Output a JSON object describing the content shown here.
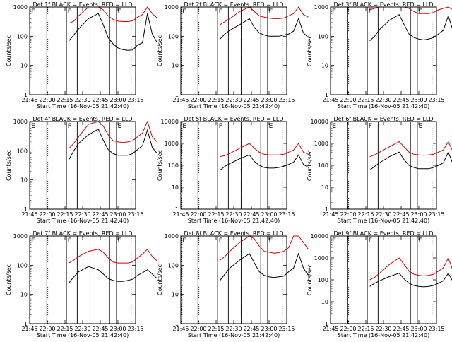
{
  "chart_data": {
    "type": "line",
    "xlabel": "Start Time (16-Nov-05 21:42:40)",
    "ylabel": "Counts/sec",
    "xticks": [
      "21:45",
      "22:00",
      "22:15",
      "22:30",
      "22:45",
      "23:00",
      "23:15"
    ],
    "yticks": [
      "1",
      "10",
      "100",
      "1000"
    ],
    "yticks_big": [
      "1",
      "10",
      "100",
      "1000",
      "10000"
    ],
    "x_minutes": [
      0,
      10,
      20,
      25,
      30,
      35,
      40,
      45,
      50,
      60,
      70,
      75,
      80,
      85,
      90,
      95,
      100,
      105,
      110,
      115,
      120,
      125,
      130
    ],
    "markers_dotted": [
      0.5,
      18.5,
      61.5,
      103.5
    ],
    "markers_solid": [
      17.5,
      37.5,
      48.5,
      61.5,
      81.5,
      88.5
    ],
    "marker_letters": [
      "E",
      "F",
      "E"
    ],
    "panels": [
      {
        "title": "Det 1f BLACK = Events, RED = LLD",
        "ymax_decade": 3,
        "series": [
          {
            "name": "Events",
            "color": "#000000",
            "values": [
              null,
              null,
              null,
              null,
              null,
              null,
              70,
              110,
              180,
              400,
              600,
              250,
              90,
              55,
              40,
              35,
              33,
              34,
              50,
              60,
              600,
              120,
              60
            ]
          },
          {
            "name": "LLD",
            "color": "#dd0000",
            "values": [
              null,
              null,
              null,
              null,
              null,
              null,
              280,
              330,
              500,
              1000,
              1000,
              800,
              500,
              380,
              330,
              320,
              320,
              340,
              450,
              550,
              1000,
              600,
              420
            ]
          }
        ]
      },
      {
        "title": "Det 2f BLACK = Events, RED = LLD",
        "ymax_decade": 3,
        "series": [
          {
            "name": "Events",
            "color": "#000000",
            "values": [
              null,
              null,
              null,
              null,
              null,
              null,
              80,
              120,
              160,
              250,
              400,
              200,
              130,
              110,
              100,
              100,
              100,
              110,
              120,
              150,
              400,
              130,
              90
            ]
          },
          {
            "name": "LLD",
            "color": "#dd0000",
            "values": [
              null,
              null,
              null,
              null,
              null,
              null,
              250,
              320,
              400,
              700,
              1000,
              700,
              500,
              450,
              420,
              400,
              400,
              420,
              500,
              600,
              1000,
              550,
              450
            ]
          }
        ]
      },
      {
        "title": "Det 3f BLACK = Events, RED = LLD",
        "ymax_decade": 3,
        "series": [
          {
            "name": "Events",
            "color": "#000000",
            "values": [
              null,
              null,
              null,
              null,
              null,
              null,
              70,
              100,
              170,
              350,
              550,
              250,
              120,
              90,
              80,
              75,
              80,
              90,
              120,
              160,
              500,
              150,
              90
            ]
          },
          {
            "name": "LLD",
            "color": "#dd0000",
            "values": [
              null,
              null,
              null,
              null,
              null,
              null,
              800,
              900,
              1000,
              1000,
              1000,
              1000,
              900,
              700,
              600,
              600,
              600,
              650,
              800,
              900,
              1000,
              800,
              650
            ]
          }
        ]
      },
      {
        "title": "Det 4f BLACK = Events, RED = LLD",
        "ymax_decade": 3,
        "series": [
          {
            "name": "Events",
            "color": "#000000",
            "values": [
              null,
              null,
              null,
              null,
              null,
              null,
              50,
              100,
              180,
              350,
              550,
              230,
              110,
              80,
              70,
              70,
              70,
              80,
              110,
              150,
              500,
              130,
              80
            ]
          },
          {
            "name": "LLD",
            "color": "#dd0000",
            "values": [
              null,
              null,
              null,
              null,
              null,
              null,
              120,
              180,
              300,
              800,
              1000,
              700,
              350,
              220,
              200,
              190,
              200,
              220,
              300,
              400,
              1000,
              300,
              200
            ]
          }
        ]
      },
      {
        "title": "Det 5f BLACK = Events, RED = LLD",
        "ymax_decade": 4,
        "series": [
          {
            "name": "Events",
            "color": "#000000",
            "values": [
              null,
              null,
              null,
              null,
              null,
              null,
              60,
              90,
              120,
              200,
              300,
              150,
              100,
              80,
              75,
              75,
              80,
              90,
              110,
              140,
              300,
              110,
              80
            ]
          },
          {
            "name": "LLD",
            "color": "#dd0000",
            "values": [
              null,
              null,
              null,
              null,
              null,
              null,
              250,
              280,
              350,
              600,
              1000,
              600,
              400,
              320,
              300,
              300,
              300,
              320,
              400,
              500,
              1000,
              400,
              320
            ]
          }
        ]
      },
      {
        "title": "Det 6f BLACK = Events, RED = LLD",
        "ymax_decade": 4,
        "series": [
          {
            "name": "Events",
            "color": "#000000",
            "values": [
              null,
              null,
              null,
              null,
              null,
              null,
              60,
              90,
              130,
              250,
              400,
              180,
              100,
              80,
              70,
              70,
              70,
              80,
              100,
              130,
              400,
              110,
              70
            ]
          },
          {
            "name": "LLD",
            "color": "#dd0000",
            "values": [
              null,
              null,
              null,
              null,
              null,
              null,
              250,
              300,
              400,
              700,
              1200,
              700,
              400,
              320,
              300,
              290,
              300,
              320,
              400,
              500,
              1200,
              400,
              300
            ]
          }
        ]
      },
      {
        "title": "Det 7f BLACK = Events, RED = LLD",
        "ymax_decade": 3,
        "series": [
          {
            "name": "Events",
            "color": "#000000",
            "values": [
              null,
              null,
              null,
              null,
              null,
              null,
              25,
              40,
              60,
              90,
              70,
              50,
              35,
              30,
              28,
              28,
              30,
              33,
              45,
              55,
              70,
              50,
              35
            ]
          },
          {
            "name": "LLD",
            "color": "#dd0000",
            "values": [
              null,
              null,
              null,
              null,
              null,
              null,
              120,
              150,
              200,
              300,
              350,
              280,
              180,
              130,
              120,
              120,
              120,
              130,
              180,
              240,
              350,
              200,
              140
            ]
          }
        ]
      },
      {
        "title": "Det 8f BLACK = Events, RED = LLD",
        "ymax_decade": 3,
        "series": [
          {
            "name": "Events",
            "color": "#000000",
            "values": [
              null,
              null,
              null,
              null,
              null,
              null,
              30,
              50,
              80,
              150,
              250,
              120,
              60,
              45,
              40,
              38,
              40,
              42,
              60,
              80,
              250,
              80,
              45
            ]
          },
          {
            "name": "LLD",
            "color": "#dd0000",
            "values": [
              null,
              null,
              null,
              null,
              null,
              null,
              150,
              200,
              300,
              600,
              1000,
              800,
              450,
              300,
              280,
              260,
              270,
              300,
              400,
              1000,
              1000,
              600,
              350
            ]
          }
        ]
      },
      {
        "title": "Det 9f BLACK = Events, RED = LLD",
        "ymax_decade": 4,
        "series": [
          {
            "name": "Events",
            "color": "#000000",
            "values": [
              null,
              null,
              null,
              null,
              null,
              null,
              50,
              70,
              90,
              140,
              200,
              110,
              70,
              55,
              50,
              48,
              50,
              55,
              70,
              90,
              200,
              80,
              60
            ]
          },
          {
            "name": "LLD",
            "color": "#dd0000",
            "values": [
              null,
              null,
              null,
              null,
              null,
              null,
              100,
              130,
              200,
              500,
              1000,
              500,
              250,
              180,
              160,
              150,
              160,
              180,
              250,
              350,
              1000,
              250,
              160
            ]
          }
        ]
      }
    ]
  }
}
